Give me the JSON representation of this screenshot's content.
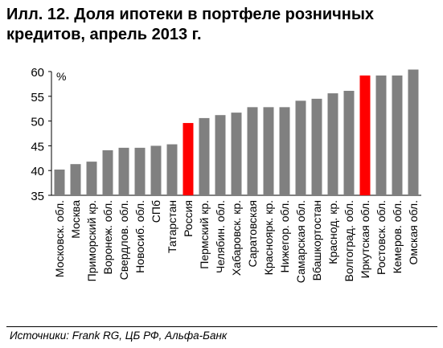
{
  "header": {
    "title_line1": "Илл. 12. Доля ипотеки в портфеле розничных",
    "title_line2": "кредитов, апрель 2013 г."
  },
  "footer": {
    "source": "Источники: Frank RG, ЦБ РФ, Альфа-Банк"
  },
  "chart_data": {
    "type": "bar",
    "title": "Илл. 12. Доля ипотеки в портфеле розничных кредитов, апрель 2013 г.",
    "ylabel": "%",
    "ylim": [
      35,
      60
    ],
    "yticks": [
      35,
      40,
      45,
      50,
      55,
      60
    ],
    "grid": false,
    "legend": "none",
    "categories": [
      "Московск. обл.",
      "Москва",
      "Приморский кр.",
      "Воронеж. обл.",
      "Свердлов. обл.",
      "Новосиб. обл.",
      "СПб",
      "Татарстан",
      "Россия",
      "Пермский кр.",
      "Челябин. обл.",
      "Хабаровск. кр.",
      "Саратовская",
      "Красноярк. кр.",
      "Нижегор. обл.",
      "Самарская обл.",
      "Вбашкортостан",
      "Краснод. кр.",
      "Волгоград. обл.",
      "Иркутская обл.",
      "Ростовск. обл.",
      "Кемеров. обл.",
      "Омская обл."
    ],
    "values": [
      40.2,
      41.3,
      41.8,
      44.1,
      44.6,
      44.6,
      45.0,
      45.3,
      49.6,
      50.6,
      51.2,
      51.7,
      52.8,
      52.8,
      52.8,
      54.1,
      54.5,
      55.6,
      56.1,
      59.2,
      59.2,
      59.2,
      60.4
    ],
    "highlight": [
      "Россия",
      "Иркутская обл."
    ],
    "colors": {
      "bar": "#808080",
      "highlight": "#ff0000",
      "axis": "#000000"
    }
  }
}
